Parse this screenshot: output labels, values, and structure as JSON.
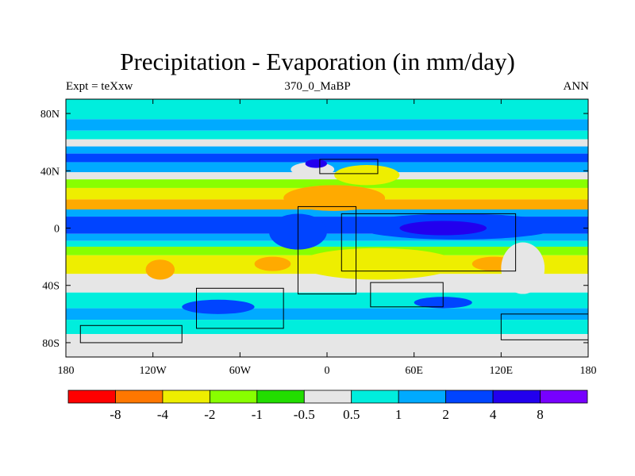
{
  "header": {
    "title": "Precipitation - Evaporation (in mm/day)",
    "left_label": "Expt = teXxw",
    "center_label": "370_0_MaBP",
    "right_label": "ANN"
  },
  "map": {
    "lon_range": [
      -180,
      180
    ],
    "lat_range": [
      -90,
      90
    ],
    "x_ticks": [
      {
        "lon": -180,
        "label": "180"
      },
      {
        "lon": -120,
        "label": "120W"
      },
      {
        "lon": -60,
        "label": "60W"
      },
      {
        "lon": 0,
        "label": "0"
      },
      {
        "lon": 60,
        "label": "60E"
      },
      {
        "lon": 120,
        "label": "120E"
      },
      {
        "lon": 180,
        "label": "180"
      }
    ],
    "y_ticks": [
      {
        "lat": 80,
        "label": "80N"
      },
      {
        "lat": 40,
        "label": "40N"
      },
      {
        "lat": 0,
        "label": "0"
      },
      {
        "lat": -40,
        "label": "40S"
      },
      {
        "lat": -80,
        "label": "80S"
      }
    ],
    "bands": [
      {
        "from": 90,
        "to": 76,
        "color": "#00eedd"
      },
      {
        "from": 76,
        "to": 68,
        "color": "#00aaff"
      },
      {
        "from": 68,
        "to": 62,
        "color": "#00eedd"
      },
      {
        "from": 62,
        "to": 57,
        "color": "#e6e6e6"
      },
      {
        "from": 57,
        "to": 52,
        "color": "#00aaff"
      },
      {
        "from": 52,
        "to": 46,
        "color": "#0044ff"
      },
      {
        "from": 46,
        "to": 39,
        "color": "#00aaff"
      },
      {
        "from": 39,
        "to": 34,
        "color": "#e6e6e6"
      },
      {
        "from": 34,
        "to": 28,
        "color": "#88ff00"
      },
      {
        "from": 28,
        "to": 20,
        "color": "#eeee00"
      },
      {
        "from": 20,
        "to": 13,
        "color": "#ffaa00"
      },
      {
        "from": 13,
        "to": 8,
        "color": "#00aaff"
      },
      {
        "from": 8,
        "to": -4,
        "color": "#0044ff"
      },
      {
        "from": -4,
        "to": -9,
        "color": "#00aaff"
      },
      {
        "from": -9,
        "to": -13,
        "color": "#00eedd"
      },
      {
        "from": -13,
        "to": -19,
        "color": "#88ff00"
      },
      {
        "from": -19,
        "to": -32,
        "color": "#eeee00"
      },
      {
        "from": -32,
        "to": -45,
        "color": "#e6e6e6"
      },
      {
        "from": -45,
        "to": -56,
        "color": "#00eedd"
      },
      {
        "from": -56,
        "to": -64,
        "color": "#00aaff"
      },
      {
        "from": -64,
        "to": -74,
        "color": "#00eedd"
      },
      {
        "from": -74,
        "to": -90,
        "color": "#e6e6e6"
      }
    ],
    "patches": [
      {
        "lon": [
          -30,
          40
        ],
        "lat": [
          12,
          30
        ],
        "color": "#ffaa00"
      },
      {
        "lon": [
          5,
          50
        ],
        "lat": [
          30,
          44
        ],
        "color": "#eeee00"
      },
      {
        "lon": [
          -25,
          5
        ],
        "lat": [
          36,
          46
        ],
        "color": "#e6e6e6"
      },
      {
        "lon": [
          -15,
          0
        ],
        "lat": [
          42,
          48
        ],
        "color": "#2200ee"
      },
      {
        "lon": [
          -40,
          0
        ],
        "lat": [
          -15,
          10
        ],
        "color": "#0044ff"
      },
      {
        "lon": [
          20,
          160
        ],
        "lat": [
          -8,
          10
        ],
        "color": "#0044ff"
      },
      {
        "lon": [
          50,
          110
        ],
        "lat": [
          -5,
          5
        ],
        "color": "#2200ee"
      },
      {
        "lon": [
          -20,
          90
        ],
        "lat": [
          -36,
          -14
        ],
        "color": "#eeee00"
      },
      {
        "lon": [
          -50,
          -25
        ],
        "lat": [
          -30,
          -20
        ],
        "color": "#ffaa00"
      },
      {
        "lon": [
          100,
          130
        ],
        "lat": [
          -30,
          -20
        ],
        "color": "#ffaa00"
      },
      {
        "lon": [
          -125,
          -105
        ],
        "lat": [
          -36,
          -22
        ],
        "color": "#ffaa00"
      },
      {
        "lon": [
          120,
          150
        ],
        "lat": [
          -46,
          -10
        ],
        "color": "#e6e6e6"
      },
      {
        "lon": [
          -100,
          -50
        ],
        "lat": [
          -60,
          -50
        ],
        "color": "#0044ff"
      },
      {
        "lon": [
          60,
          100
        ],
        "lat": [
          -56,
          -48
        ],
        "color": "#0044ff"
      }
    ],
    "land": [
      {
        "lon": [
          -20,
          20
        ],
        "lat": [
          -46,
          15
        ]
      },
      {
        "lon": [
          10,
          130
        ],
        "lat": [
          -30,
          10
        ]
      },
      {
        "lon": [
          -90,
          -30
        ],
        "lat": [
          -70,
          -42
        ]
      },
      {
        "lon": [
          30,
          80
        ],
        "lat": [
          -55,
          -38
        ]
      },
      {
        "lon": [
          -170,
          -100
        ],
        "lat": [
          -80,
          -68
        ]
      },
      {
        "lon": [
          120,
          180
        ],
        "lat": [
          -78,
          -60
        ]
      },
      {
        "lon": [
          -5,
          35
        ],
        "lat": [
          38,
          48
        ]
      }
    ]
  },
  "colorbar": {
    "colors": [
      "#ff0000",
      "#ff7700",
      "#eeee00",
      "#88ff00",
      "#22dd00",
      "#e6e6e6",
      "#00eedd",
      "#00aaff",
      "#0044ff",
      "#2200ee",
      "#7700ff"
    ],
    "labels": [
      "-8",
      "-4",
      "-2",
      "-1",
      "-0.5",
      "0.5",
      "1",
      "2",
      "4",
      "8"
    ]
  }
}
